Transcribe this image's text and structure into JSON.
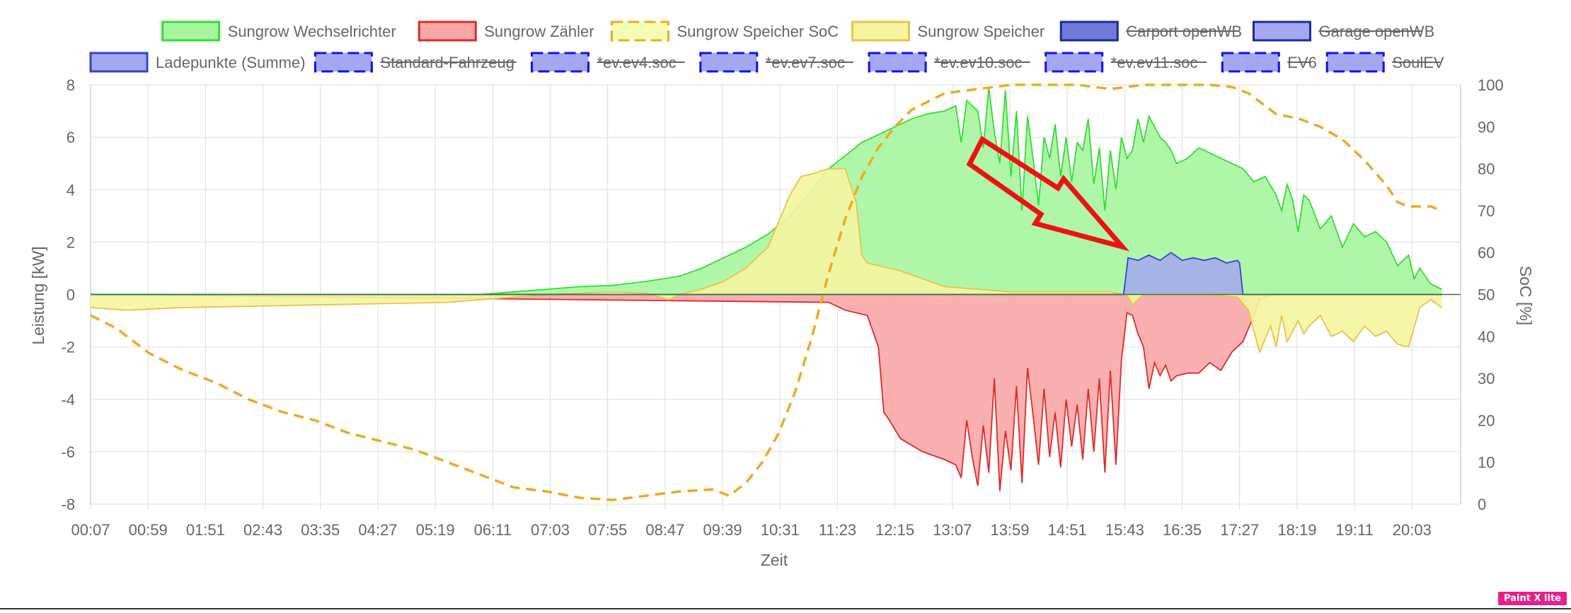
{
  "badge_text": "Paint X lite",
  "chart_data": {
    "type": "area",
    "title": "",
    "xlabel": "Zeit",
    "ylabel": "Leistung [kW]",
    "y2label": "SoC [%]",
    "ylim": [
      -8,
      8
    ],
    "y2lim": [
      0,
      100
    ],
    "yticks": [
      "8",
      "6",
      "4",
      "2",
      "0",
      "-2",
      "-4",
      "-6",
      "-8"
    ],
    "y2ticks": [
      "100",
      "90",
      "80",
      "70",
      "60",
      "50",
      "40",
      "30",
      "20",
      "10",
      "0"
    ],
    "xticks": [
      "00:07",
      "00:59",
      "01:51",
      "02:43",
      "03:35",
      "04:27",
      "05:19",
      "06:11",
      "07:03",
      "07:55",
      "08:47",
      "09:39",
      "10:31",
      "11:23",
      "12:15",
      "13:07",
      "13:59",
      "14:51",
      "15:43",
      "16:35",
      "17:27",
      "18:19",
      "19:11",
      "20:03"
    ],
    "grid": true,
    "legend_position": "top",
    "legend": [
      {
        "label": "Sungrow Wechselrichter",
        "fill": "#a6f5a0",
        "stroke": "#33dd33",
        "dashed": false,
        "hidden": false
      },
      {
        "label": "Sungrow Zähler",
        "fill": "#f9a7a7",
        "stroke": "#e02a2a",
        "dashed": false,
        "hidden": false
      },
      {
        "label": "Sungrow Speicher SoC",
        "fill": "#f2ffb3",
        "stroke": "#f5a623",
        "dashed": true,
        "hidden": false
      },
      {
        "label": "Sungrow Speicher",
        "fill": "#f5f5a0",
        "stroke": "#e6c34a",
        "dashed": false,
        "hidden": false
      },
      {
        "label": "Carport openWB",
        "fill": "#6f7ad9",
        "stroke": "#1a2a9a",
        "dashed": false,
        "hidden": true
      },
      {
        "label": "Garage openWB",
        "fill": "#a3a8f0",
        "stroke": "#1a2a9a",
        "dashed": false,
        "hidden": true
      },
      {
        "label": "Ladepunkte (Summe)",
        "fill": "#a3a8f0",
        "stroke": "#3344cc",
        "dashed": false,
        "hidden": false
      },
      {
        "label": "Standard-Fahrzeug",
        "fill": "#a3a8f0",
        "stroke": "#1111ee",
        "dashed": true,
        "hidden": true
      },
      {
        "label": "*ev.ev4.soc",
        "fill": "#a3a8f0",
        "stroke": "#1111ee",
        "dashed": true,
        "hidden": true
      },
      {
        "label": "*ev.ev7.soc",
        "fill": "#a3a8f0",
        "stroke": "#1111ee",
        "dashed": true,
        "hidden": true
      },
      {
        "label": "*ev.ev10.soc",
        "fill": "#a3a8f0",
        "stroke": "#1111ee",
        "dashed": true,
        "hidden": true
      },
      {
        "label": "*ev.ev11.soc",
        "fill": "#a3a8f0",
        "stroke": "#1111ee",
        "dashed": true,
        "hidden": true
      },
      {
        "label": "EV6",
        "fill": "#a3a8f0",
        "stroke": "#1111ee",
        "dashed": true,
        "hidden": true
      },
      {
        "label": "SoulEV",
        "fill": "#a3a8f0",
        "stroke": "#1111ee",
        "dashed": true,
        "hidden": true
      }
    ],
    "series": [
      {
        "name": "Sungrow Wechselrichter",
        "unit": "kW",
        "x": [
          "00:07",
          "06:00",
          "06:30",
          "07:00",
          "07:30",
          "08:00",
          "08:30",
          "09:00",
          "09:20",
          "09:40",
          "10:00",
          "10:20",
          "10:40",
          "11:00",
          "11:15",
          "11:30",
          "11:45",
          "12:00",
          "12:15",
          "12:30",
          "12:45",
          "13:00",
          "13:10",
          "13:15",
          "13:20",
          "13:30",
          "13:35",
          "13:40",
          "13:45",
          "13:50",
          "13:55",
          "14:00",
          "14:05",
          "14:10",
          "14:15",
          "14:20",
          "14:25",
          "14:30",
          "14:35",
          "14:40",
          "14:45",
          "14:50",
          "14:55",
          "15:00",
          "15:05",
          "15:10",
          "15:15",
          "15:20",
          "15:25",
          "15:30",
          "15:35",
          "15:40",
          "15:45",
          "15:50",
          "15:55",
          "16:00",
          "16:05",
          "16:10",
          "16:15",
          "16:20",
          "16:25",
          "16:30",
          "16:40",
          "16:50",
          "17:00",
          "17:10",
          "17:20",
          "17:30",
          "17:40",
          "17:50",
          "18:00",
          "18:05",
          "18:10",
          "18:15",
          "18:20",
          "18:25",
          "18:30",
          "18:40",
          "18:50",
          "19:00",
          "19:10",
          "19:20",
          "19:30",
          "19:40",
          "19:50",
          "20:00",
          "20:05",
          "20:10",
          "20:20",
          "20:30"
        ],
        "values": [
          0,
          0,
          0.1,
          0.2,
          0.3,
          0.35,
          0.5,
          0.7,
          1.0,
          1.4,
          1.8,
          2.3,
          3.0,
          4.0,
          4.8,
          5.3,
          5.8,
          6.1,
          6.4,
          6.7,
          6.9,
          7.0,
          7.2,
          5.8,
          7.4,
          7.0,
          5.6,
          7.9,
          6.2,
          5.0,
          7.8,
          4.5,
          7.0,
          3.2,
          6.8,
          5.2,
          3.4,
          6.0,
          5.2,
          6.5,
          4.5,
          6.0,
          4.3,
          5.8,
          5.5,
          6.7,
          4.2,
          5.6,
          3.2,
          5.5,
          4.0,
          6.0,
          5.2,
          5.5,
          6.7,
          5.8,
          6.8,
          6.4,
          6.0,
          5.8,
          5.5,
          5.0,
          5.2,
          5.6,
          5.4,
          5.2,
          5.0,
          4.8,
          4.3,
          4.5,
          3.8,
          3.2,
          4.2,
          3.6,
          2.4,
          3.8,
          3.6,
          2.5,
          3.0,
          1.8,
          2.7,
          2.2,
          2.4,
          2.0,
          1.1,
          1.5,
          0.6,
          1.0,
          0.4,
          0.2
        ]
      },
      {
        "name": "Sungrow Zähler",
        "unit": "kW",
        "x": [
          "00:07",
          "11:15",
          "11:30",
          "11:50",
          "12:00",
          "12:05",
          "12:10",
          "12:20",
          "12:40",
          "13:00",
          "13:10",
          "13:15",
          "13:20",
          "13:25",
          "13:30",
          "13:35",
          "13:40",
          "13:45",
          "13:50",
          "13:55",
          "14:00",
          "14:05",
          "14:10",
          "14:15",
          "14:20",
          "14:25",
          "14:30",
          "14:35",
          "14:40",
          "14:45",
          "14:50",
          "14:55",
          "15:00",
          "15:05",
          "15:10",
          "15:15",
          "15:20",
          "15:25",
          "15:30",
          "15:35",
          "15:40",
          "15:45",
          "15:50",
          "15:55",
          "16:00",
          "16:05",
          "16:10",
          "16:15",
          "16:20",
          "16:25",
          "16:30",
          "16:40",
          "16:50",
          "17:00",
          "17:10",
          "17:20",
          "17:30",
          "17:40",
          "17:45",
          "17:50",
          "18:00",
          "20:30"
        ],
        "values": [
          0,
          -0.3,
          -0.6,
          -0.8,
          -2.0,
          -4.5,
          -4.8,
          -5.5,
          -6.0,
          -6.3,
          -6.5,
          -7.0,
          -4.8,
          -6.2,
          -7.3,
          -5.0,
          -6.8,
          -3.2,
          -7.5,
          -5.2,
          -6.7,
          -3.5,
          -7.2,
          -2.8,
          -4.6,
          -6.5,
          -3.6,
          -6.2,
          -4.5,
          -6.6,
          -4.0,
          -5.8,
          -4.2,
          -6.3,
          -3.6,
          -6.0,
          -3.2,
          -6.8,
          -2.9,
          -6.5,
          -2.5,
          -0.7,
          -0.8,
          -1.5,
          -2.0,
          -3.6,
          -2.6,
          -3.1,
          -2.7,
          -3.3,
          -3.1,
          -3.0,
          -3.0,
          -2.6,
          -2.9,
          -2.2,
          -1.8,
          -0.8,
          -0.2,
          -0.1,
          0,
          0
        ]
      },
      {
        "name": "Sungrow Speicher SoC",
        "unit": "%",
        "x": [
          "00:07",
          "00:30",
          "01:00",
          "01:30",
          "02:00",
          "02:30",
          "03:00",
          "03:30",
          "04:00",
          "04:30",
          "05:00",
          "05:30",
          "06:00",
          "06:30",
          "07:00",
          "07:30",
          "08:00",
          "08:30",
          "09:00",
          "09:30",
          "09:45",
          "10:00",
          "10:15",
          "10:30",
          "10:45",
          "11:00",
          "11:15",
          "11:30",
          "11:45",
          "12:00",
          "12:15",
          "12:30",
          "12:45",
          "13:00",
          "13:15",
          "13:30",
          "13:45",
          "14:00",
          "14:30",
          "15:00",
          "15:30",
          "16:00",
          "16:30",
          "17:00",
          "17:20",
          "17:35",
          "17:50",
          "18:00",
          "18:20",
          "18:40",
          "19:00",
          "19:20",
          "19:40",
          "19:50",
          "20:00",
          "20:20",
          "20:30"
        ],
        "values": [
          45,
          42,
          36,
          32,
          29,
          25,
          22,
          20,
          17,
          15,
          13,
          10,
          7,
          4,
          3,
          1.5,
          1,
          2,
          3,
          3.5,
          2,
          5,
          10,
          17,
          27,
          40,
          55,
          68,
          78,
          85,
          90,
          94,
          96,
          98,
          98.5,
          99,
          99.5,
          100,
          100,
          100,
          99,
          100,
          100,
          100,
          99.5,
          98,
          95,
          93,
          92,
          90,
          87,
          82,
          76,
          72,
          71,
          71,
          70
        ]
      },
      {
        "name": "Sungrow Speicher",
        "unit": "kW",
        "x": [
          "00:07",
          "00:40",
          "01:30",
          "02:30",
          "03:30",
          "04:30",
          "05:30",
          "06:00",
          "06:30",
          "07:00",
          "07:30",
          "08:00",
          "08:30",
          "08:50",
          "09:00",
          "09:20",
          "09:40",
          "10:00",
          "10:20",
          "10:30",
          "10:40",
          "10:50",
          "11:00",
          "11:15",
          "11:30",
          "11:40",
          "11:45",
          "11:50",
          "12:00",
          "12:20",
          "12:40",
          "13:00",
          "13:30",
          "14:00",
          "15:00",
          "15:30",
          "15:40",
          "15:45",
          "15:50",
          "16:00",
          "17:00",
          "17:25",
          "17:35",
          "17:45",
          "17:55",
          "18:00",
          "18:05",
          "18:10",
          "18:20",
          "18:25",
          "18:30",
          "18:40",
          "18:50",
          "19:00",
          "19:10",
          "19:20",
          "19:30",
          "19:40",
          "19:50",
          "20:00",
          "20:10",
          "20:20",
          "20:30"
        ],
        "values": [
          -0.5,
          -0.6,
          -0.5,
          -0.45,
          -0.4,
          -0.35,
          -0.3,
          -0.2,
          -0.1,
          0,
          0.05,
          0.1,
          0.05,
          -0.2,
          0.0,
          0.2,
          0.5,
          1.0,
          1.8,
          2.8,
          3.8,
          4.5,
          4.6,
          4.8,
          4.8,
          3.5,
          1.5,
          1.2,
          1.1,
          0.9,
          0.6,
          0.3,
          0.2,
          0.1,
          0.1,
          0.1,
          0,
          0,
          -0.4,
          0,
          0,
          -0.1,
          -0.6,
          -2.2,
          -1.2,
          -2.0,
          -0.8,
          -1.8,
          -1.0,
          -1.5,
          -1.2,
          -0.8,
          -1.6,
          -1.4,
          -1.8,
          -1.2,
          -1.6,
          -1.4,
          -1.9,
          -2.0,
          -0.5,
          -0.2,
          -0.5
        ]
      },
      {
        "name": "Ladepunkte (Summe)",
        "unit": "kW",
        "x": [
          "00:07",
          "15:42",
          "15:46",
          "15:55",
          "16:05",
          "16:15",
          "16:25",
          "16:35",
          "16:45",
          "16:55",
          "17:05",
          "17:15",
          "17:25",
          "17:27",
          "17:30",
          "20:30"
        ],
        "values": [
          0,
          0,
          1.4,
          1.3,
          1.5,
          1.3,
          1.6,
          1.3,
          1.4,
          1.3,
          1.4,
          1.2,
          1.3,
          1.2,
          0,
          0
        ]
      }
    ]
  }
}
